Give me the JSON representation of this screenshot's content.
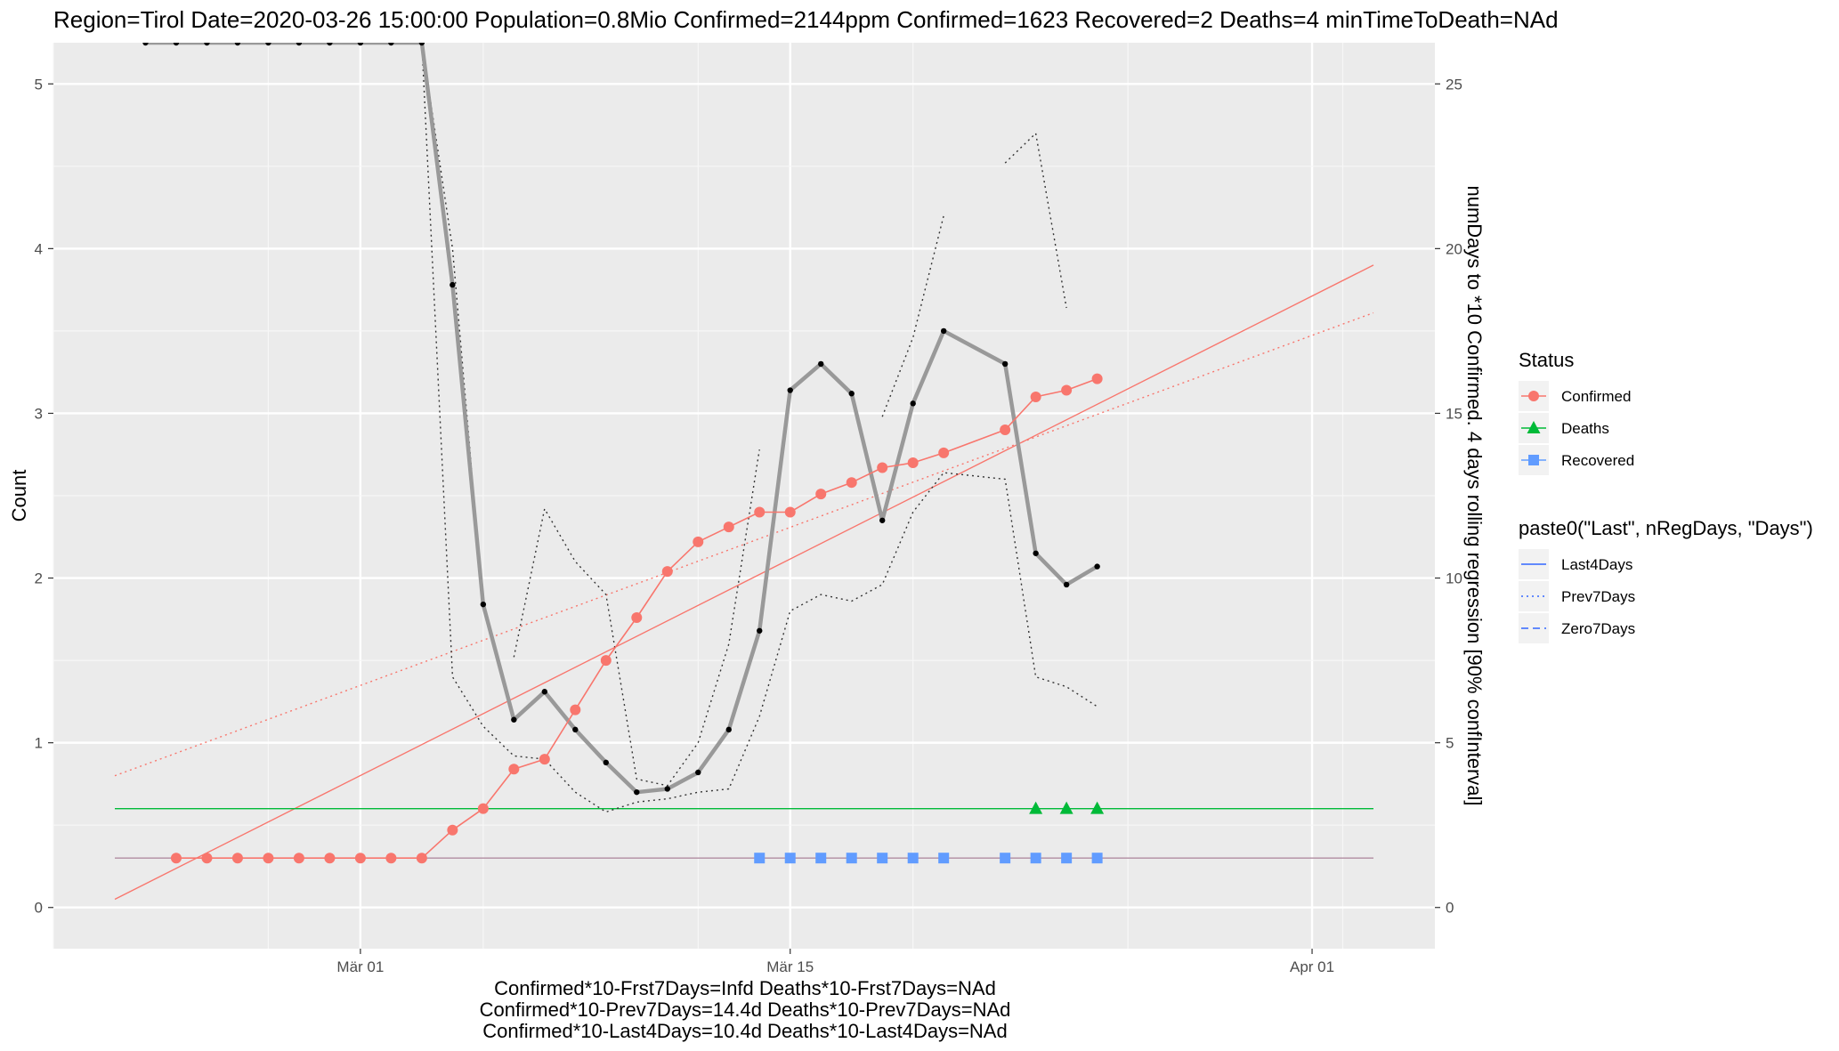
{
  "chart_data": {
    "type": "line",
    "title": "Region=Tirol Date=2020-03-26 15:00:00  Population=0.8Mio Confirmed=2144ppm  Confirmed=1623  Recovered=2 Deaths=4  minTimeToDeath=NAd",
    "ylabel": "Count",
    "y2label": "numDays to *10 Confirmed. 4 days rolling regression [90% confInterval]",
    "xlabel_lines": [
      "Confirmed*10-Frst7Days=Infd  Deaths*10-Frst7Days=NAd",
      "Confirmed*10-Prev7Days=14.4d  Deaths*10-Prev7Days=NAd",
      "Confirmed*10-Last4Days=10.4d  Deaths*10-Last4Days=NAd"
    ],
    "xlim": [
      "2020-02-20",
      "2020-04-05"
    ],
    "ylim": [
      -0.25,
      5.25
    ],
    "y2lim": [
      -1.25,
      26.25
    ],
    "x_ticks": [
      {
        "date": "2020-03-01",
        "label": "Mär 01"
      },
      {
        "date": "2020-03-15",
        "label": "Mär 15"
      },
      {
        "date": "2020-04-01",
        "label": "Apr 01"
      }
    ],
    "y_ticks": [
      0,
      1,
      2,
      3,
      4,
      5
    ],
    "y2_ticks": [
      0,
      5,
      10,
      15,
      20,
      25
    ],
    "grid": true,
    "legend_placement": "right",
    "legend_status": {
      "title": "Status",
      "items": [
        {
          "name": "Confirmed",
          "color": "#F8766D",
          "shape": "circle"
        },
        {
          "name": "Deaths",
          "color": "#00BA38",
          "shape": "triangle"
        },
        {
          "name": "Recovered",
          "color": "#619CFF",
          "shape": "square"
        }
      ]
    },
    "legend_regression": {
      "title": "paste0(\"Last\", nRegDays, \"Days\")",
      "items": [
        {
          "name": "Last4Days",
          "dash": "solid"
        },
        {
          "name": "Prev7Days",
          "dash": "dotted"
        },
        {
          "name": "Zero7Days",
          "dash": "dashed"
        }
      ]
    },
    "series": [
      {
        "name": "Confirmed",
        "color": "#F8766D",
        "marker": "circle",
        "points": [
          [
            "2020-02-24",
            0.3
          ],
          [
            "2020-02-25",
            0.3
          ],
          [
            "2020-02-26",
            0.3
          ],
          [
            "2020-02-27",
            0.3
          ],
          [
            "2020-02-28",
            0.3
          ],
          [
            "2020-02-29",
            0.3
          ],
          [
            "2020-03-01",
            0.3
          ],
          [
            "2020-03-02",
            0.3
          ],
          [
            "2020-03-03",
            0.3
          ],
          [
            "2020-03-04",
            0.47
          ],
          [
            "2020-03-05",
            0.6
          ],
          [
            "2020-03-06",
            0.84
          ],
          [
            "2020-03-07",
            0.9
          ],
          [
            "2020-03-08",
            1.2
          ],
          [
            "2020-03-09",
            1.5
          ],
          [
            "2020-03-10",
            1.76
          ],
          [
            "2020-03-11",
            2.04
          ],
          [
            "2020-03-12",
            2.22
          ],
          [
            "2020-03-13",
            2.31
          ],
          [
            "2020-03-14",
            2.4
          ],
          [
            "2020-03-15",
            2.4
          ],
          [
            "2020-03-16",
            2.51
          ],
          [
            "2020-03-17",
            2.58
          ],
          [
            "2020-03-18",
            2.67
          ],
          [
            "2020-03-19",
            2.7
          ],
          [
            "2020-03-20",
            2.76
          ],
          [
            "2020-03-22",
            2.9
          ],
          [
            "2020-03-23",
            3.1
          ],
          [
            "2020-03-24",
            3.14
          ],
          [
            "2020-03-25",
            3.21
          ]
        ]
      },
      {
        "name": "Deaths",
        "color": "#00BA38",
        "marker": "triangle",
        "points": [
          [
            "2020-03-23",
            0.6
          ],
          [
            "2020-03-24",
            0.6
          ],
          [
            "2020-03-25",
            0.6
          ]
        ]
      },
      {
        "name": "Recovered",
        "color": "#619CFF",
        "marker": "square",
        "points": [
          [
            "2020-03-14",
            0.3
          ],
          [
            "2020-03-15",
            0.3
          ],
          [
            "2020-03-16",
            0.3
          ],
          [
            "2020-03-17",
            0.3
          ],
          [
            "2020-03-18",
            0.3
          ],
          [
            "2020-03-19",
            0.3
          ],
          [
            "2020-03-20",
            0.3
          ],
          [
            "2020-03-22",
            0.3
          ],
          [
            "2020-03-23",
            0.3
          ],
          [
            "2020-03-24",
            0.3
          ],
          [
            "2020-03-25",
            0.3
          ]
        ]
      },
      {
        "name": "numDays to *10 Confirmed (right axis)",
        "color": "#999999",
        "marker": "dot",
        "axis": "right",
        "points": [
          [
            "2020-02-23",
            26.3
          ],
          [
            "2020-02-24",
            26.3
          ],
          [
            "2020-02-25",
            26.3
          ],
          [
            "2020-02-26",
            26.3
          ],
          [
            "2020-02-27",
            26.3
          ],
          [
            "2020-02-28",
            26.3
          ],
          [
            "2020-02-29",
            26.3
          ],
          [
            "2020-03-01",
            26.3
          ],
          [
            "2020-03-02",
            26.3
          ],
          [
            "2020-03-03",
            26.3
          ],
          [
            "2020-03-04",
            18.9
          ],
          [
            "2020-03-05",
            9.2
          ],
          [
            "2020-03-06",
            5.7
          ],
          [
            "2020-03-07",
            6.55
          ],
          [
            "2020-03-08",
            5.4
          ],
          [
            "2020-03-09",
            4.4
          ],
          [
            "2020-03-10",
            3.5
          ],
          [
            "2020-03-11",
            3.6
          ],
          [
            "2020-03-12",
            4.1
          ],
          [
            "2020-03-13",
            5.4
          ],
          [
            "2020-03-14",
            8.4
          ],
          [
            "2020-03-15",
            15.7
          ],
          [
            "2020-03-16",
            16.5
          ],
          [
            "2020-03-17",
            15.6
          ],
          [
            "2020-03-18",
            11.75
          ],
          [
            "2020-03-19",
            15.3
          ],
          [
            "2020-03-20",
            17.5
          ],
          [
            "2020-03-22",
            16.5
          ],
          [
            "2020-03-23",
            10.75
          ],
          [
            "2020-03-24",
            9.8
          ],
          [
            "2020-03-25",
            10.35
          ]
        ]
      },
      {
        "name": "upper conf. interval (right axis)",
        "color": "#333333",
        "dash": "dotted",
        "axis": "right",
        "segments": [
          [
            [
              "2020-03-02",
              26.3
            ],
            [
              "2020-03-03",
              26.3
            ],
            [
              "2020-03-04",
              20.0
            ],
            [
              "2020-03-05",
              9.2
            ]
          ],
          [
            [
              "2020-03-06",
              7.6
            ],
            [
              "2020-03-07",
              12.1
            ],
            [
              "2020-03-08",
              10.5
            ],
            [
              "2020-03-09",
              9.5
            ],
            [
              "2020-03-10",
              3.9
            ],
            [
              "2020-03-11",
              3.7
            ],
            [
              "2020-03-12",
              5.0
            ],
            [
              "2020-03-13",
              8.0
            ],
            [
              "2020-03-14",
              13.9
            ]
          ],
          [
            [
              "2020-03-18",
              14.9
            ],
            [
              "2020-03-19",
              17.3
            ],
            [
              "2020-03-20",
              21.0
            ]
          ],
          [
            [
              "2020-03-22",
              22.6
            ],
            [
              "2020-03-23",
              23.5
            ],
            [
              "2020-03-24",
              18.2
            ]
          ]
        ]
      },
      {
        "name": "lower conf. interval (right axis)",
        "color": "#333333",
        "dash": "dotted",
        "axis": "right",
        "segments": [
          [
            [
              "2020-03-03",
              26.3
            ],
            [
              "2020-03-04",
              7.0
            ],
            [
              "2020-03-05",
              5.5
            ],
            [
              "2020-03-06",
              4.6
            ],
            [
              "2020-03-07",
              4.5
            ],
            [
              "2020-03-08",
              3.5
            ],
            [
              "2020-03-09",
              2.9
            ],
            [
              "2020-03-10",
              3.2
            ],
            [
              "2020-03-11",
              3.3
            ],
            [
              "2020-03-12",
              3.5
            ],
            [
              "2020-03-13",
              3.6
            ],
            [
              "2020-03-14",
              5.8
            ],
            [
              "2020-03-15",
              9.0
            ],
            [
              "2020-03-16",
              9.5
            ],
            [
              "2020-03-17",
              9.3
            ],
            [
              "2020-03-18",
              9.8
            ],
            [
              "2020-03-19",
              12.0
            ],
            [
              "2020-03-20",
              13.2
            ],
            [
              "2020-03-22",
              13.0
            ],
            [
              "2020-03-23",
              7.0
            ],
            [
              "2020-03-24",
              6.7
            ],
            [
              "2020-03-25",
              6.1
            ]
          ]
        ]
      },
      {
        "name": "Last4Days",
        "color": "#F8766D",
        "dash": "solid",
        "thin": true,
        "points": [
          [
            "2020-02-22",
            0.05
          ],
          [
            "2020-04-03",
            3.9
          ]
        ]
      },
      {
        "name": "Prev7Days",
        "color": "#F8766D",
        "dash": "dotted",
        "thin": true,
        "points": [
          [
            "2020-02-22",
            0.8
          ],
          [
            "2020-04-03",
            3.61
          ]
        ]
      },
      {
        "name": "Deaths level",
        "color": "#00BA38",
        "dash": "solid",
        "thin": true,
        "points": [
          [
            "2020-02-22",
            0.6
          ],
          [
            "2020-04-03",
            0.6
          ]
        ]
      },
      {
        "name": "Recovered level",
        "color": "#B08CA0",
        "dash": "solid",
        "thin": true,
        "points": [
          [
            "2020-02-22",
            0.3
          ],
          [
            "2020-04-03",
            0.3
          ]
        ]
      }
    ]
  }
}
